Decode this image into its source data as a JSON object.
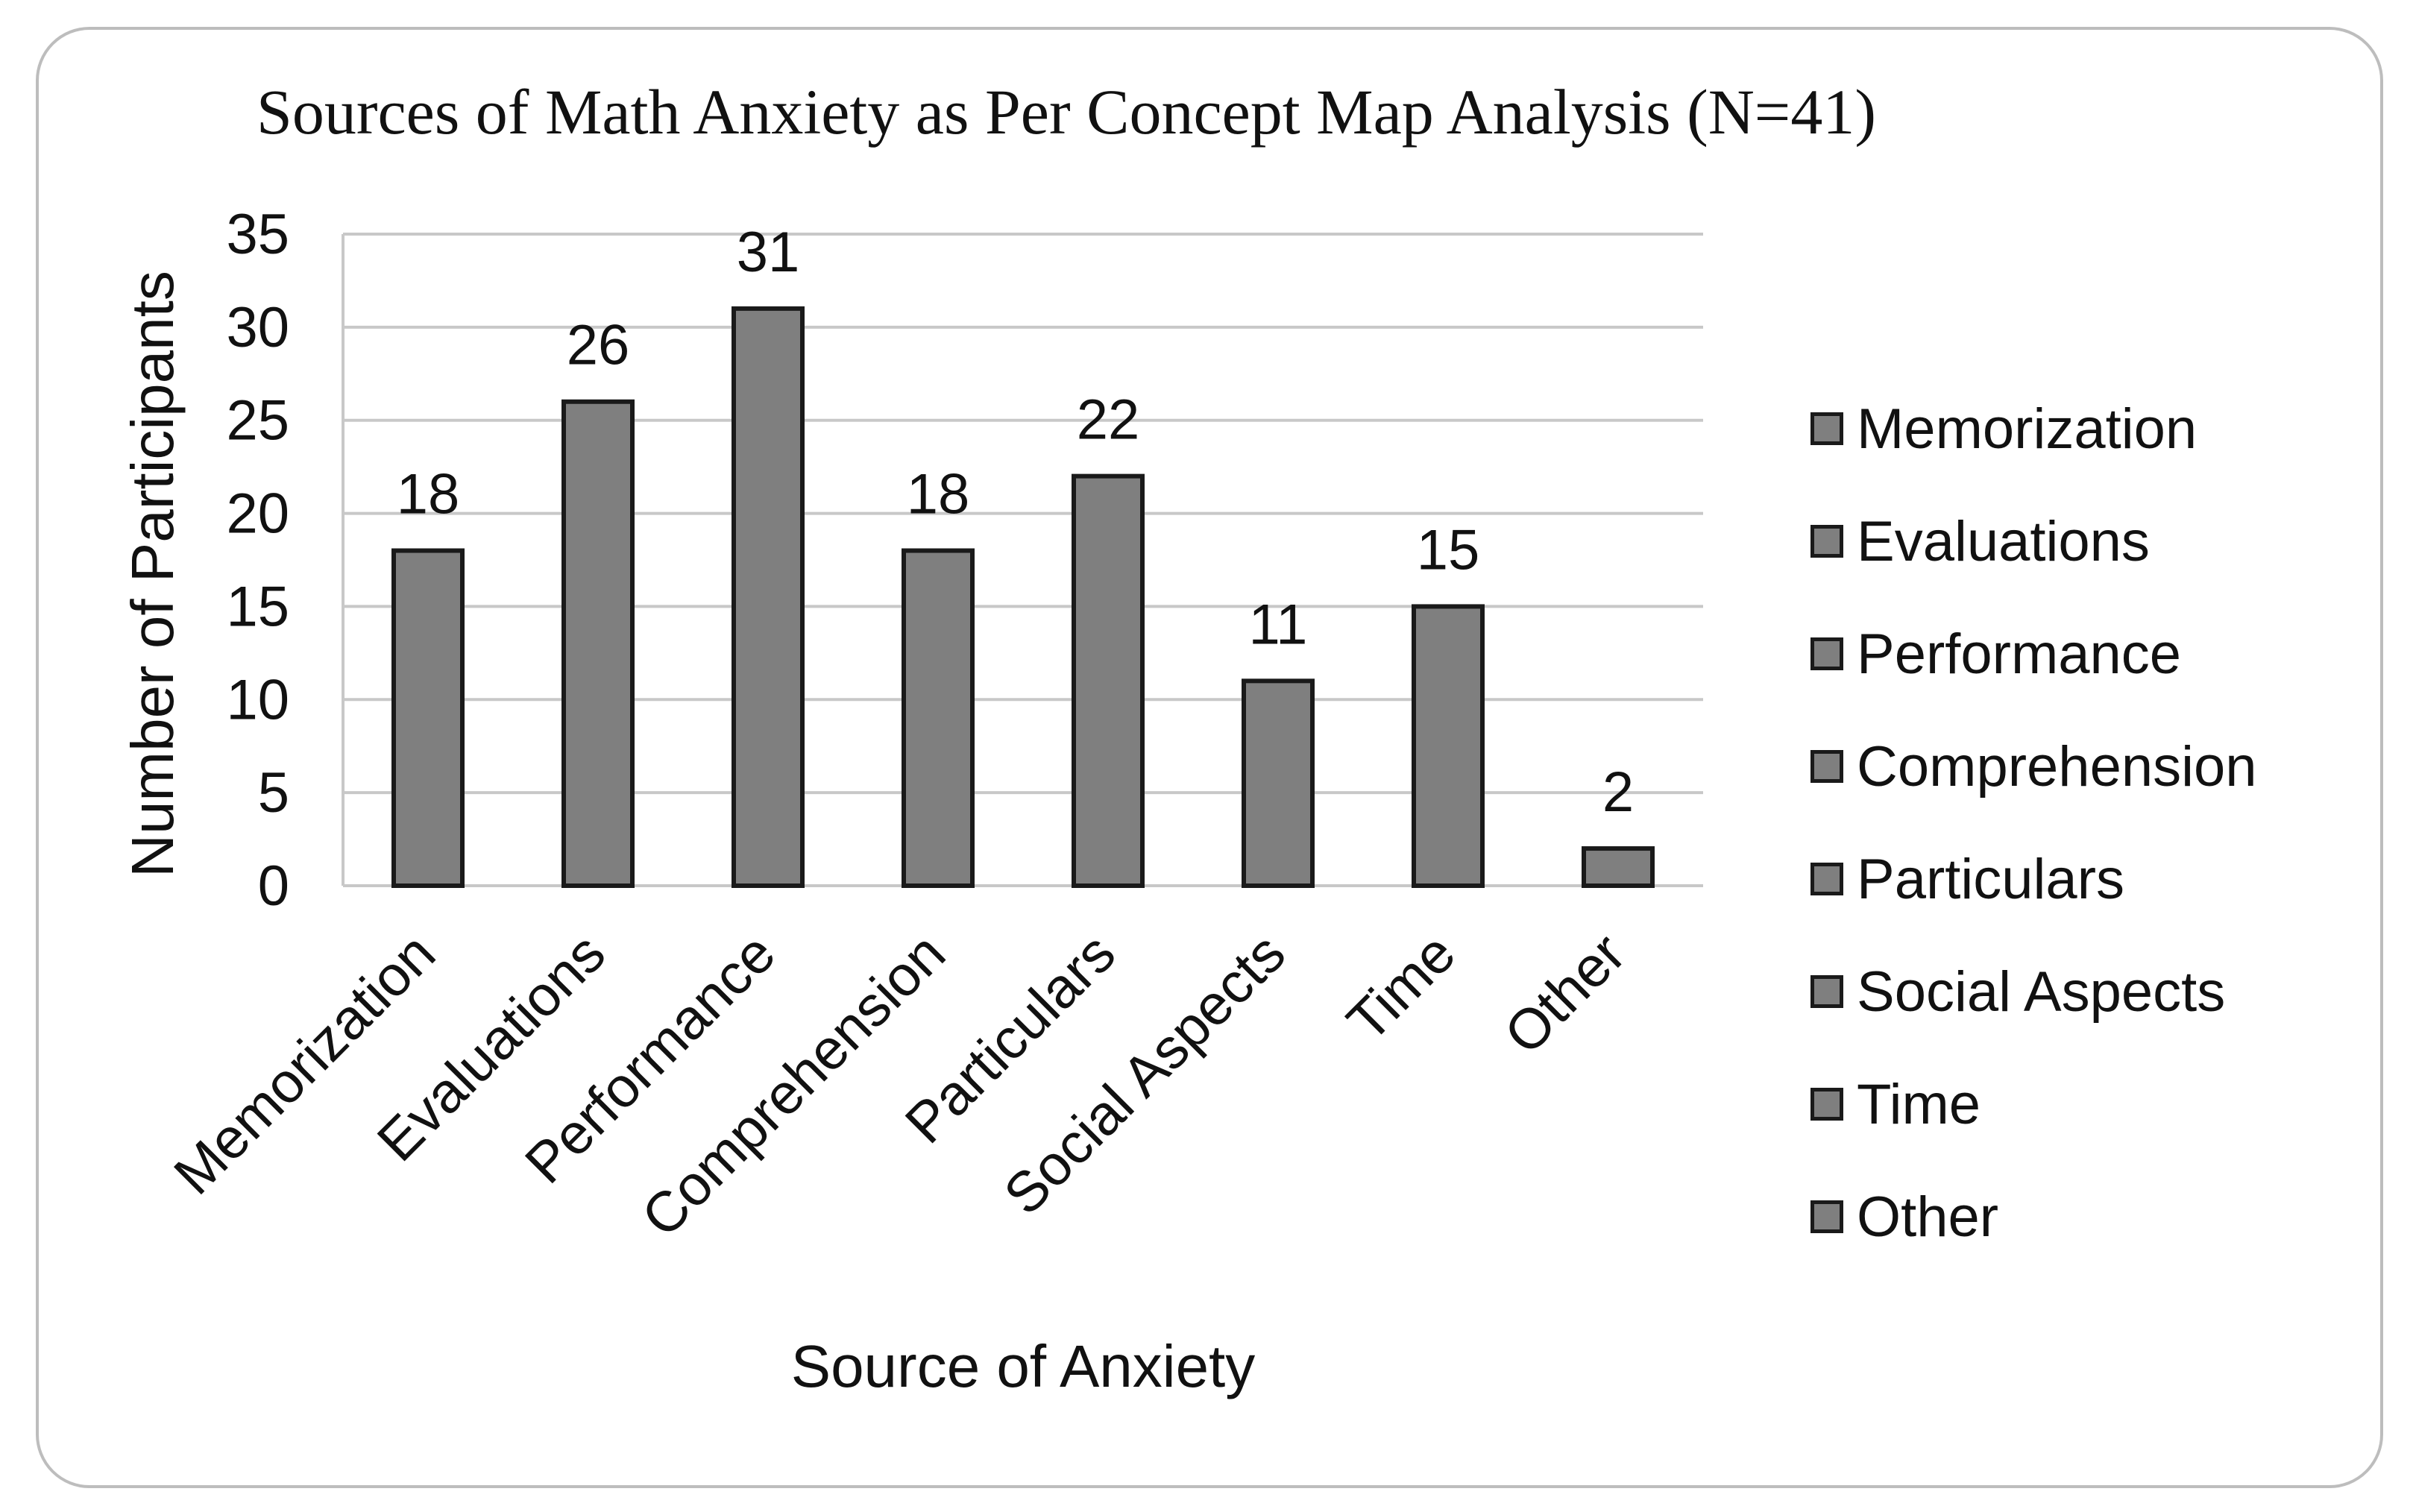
{
  "chart_data": {
    "type": "bar",
    "title": "Sources of Math Anxiety as Per Concept Map Analysis (N=41)",
    "xlabel": "Source of Anxiety",
    "ylabel": "Number of Participants",
    "categories": [
      "Memorization",
      "Evaluations",
      "Performance",
      "Comprehension",
      "Particulars",
      "Social Aspects",
      "Time",
      "Other"
    ],
    "values": [
      18,
      26,
      31,
      18,
      22,
      11,
      15,
      2
    ],
    "ylim": [
      0,
      35
    ],
    "yticks": [
      0,
      5,
      10,
      15,
      20,
      25,
      30,
      35
    ],
    "grid": true,
    "legend_position": "right",
    "bar_color": "#7f7f7f",
    "bar_edge_color": "#1a1a1a"
  },
  "legend": {
    "items": [
      "Memorization",
      "Evaluations",
      "Performance",
      "Comprehension",
      "Particulars",
      "Social Aspects",
      "Time",
      "Other"
    ]
  }
}
